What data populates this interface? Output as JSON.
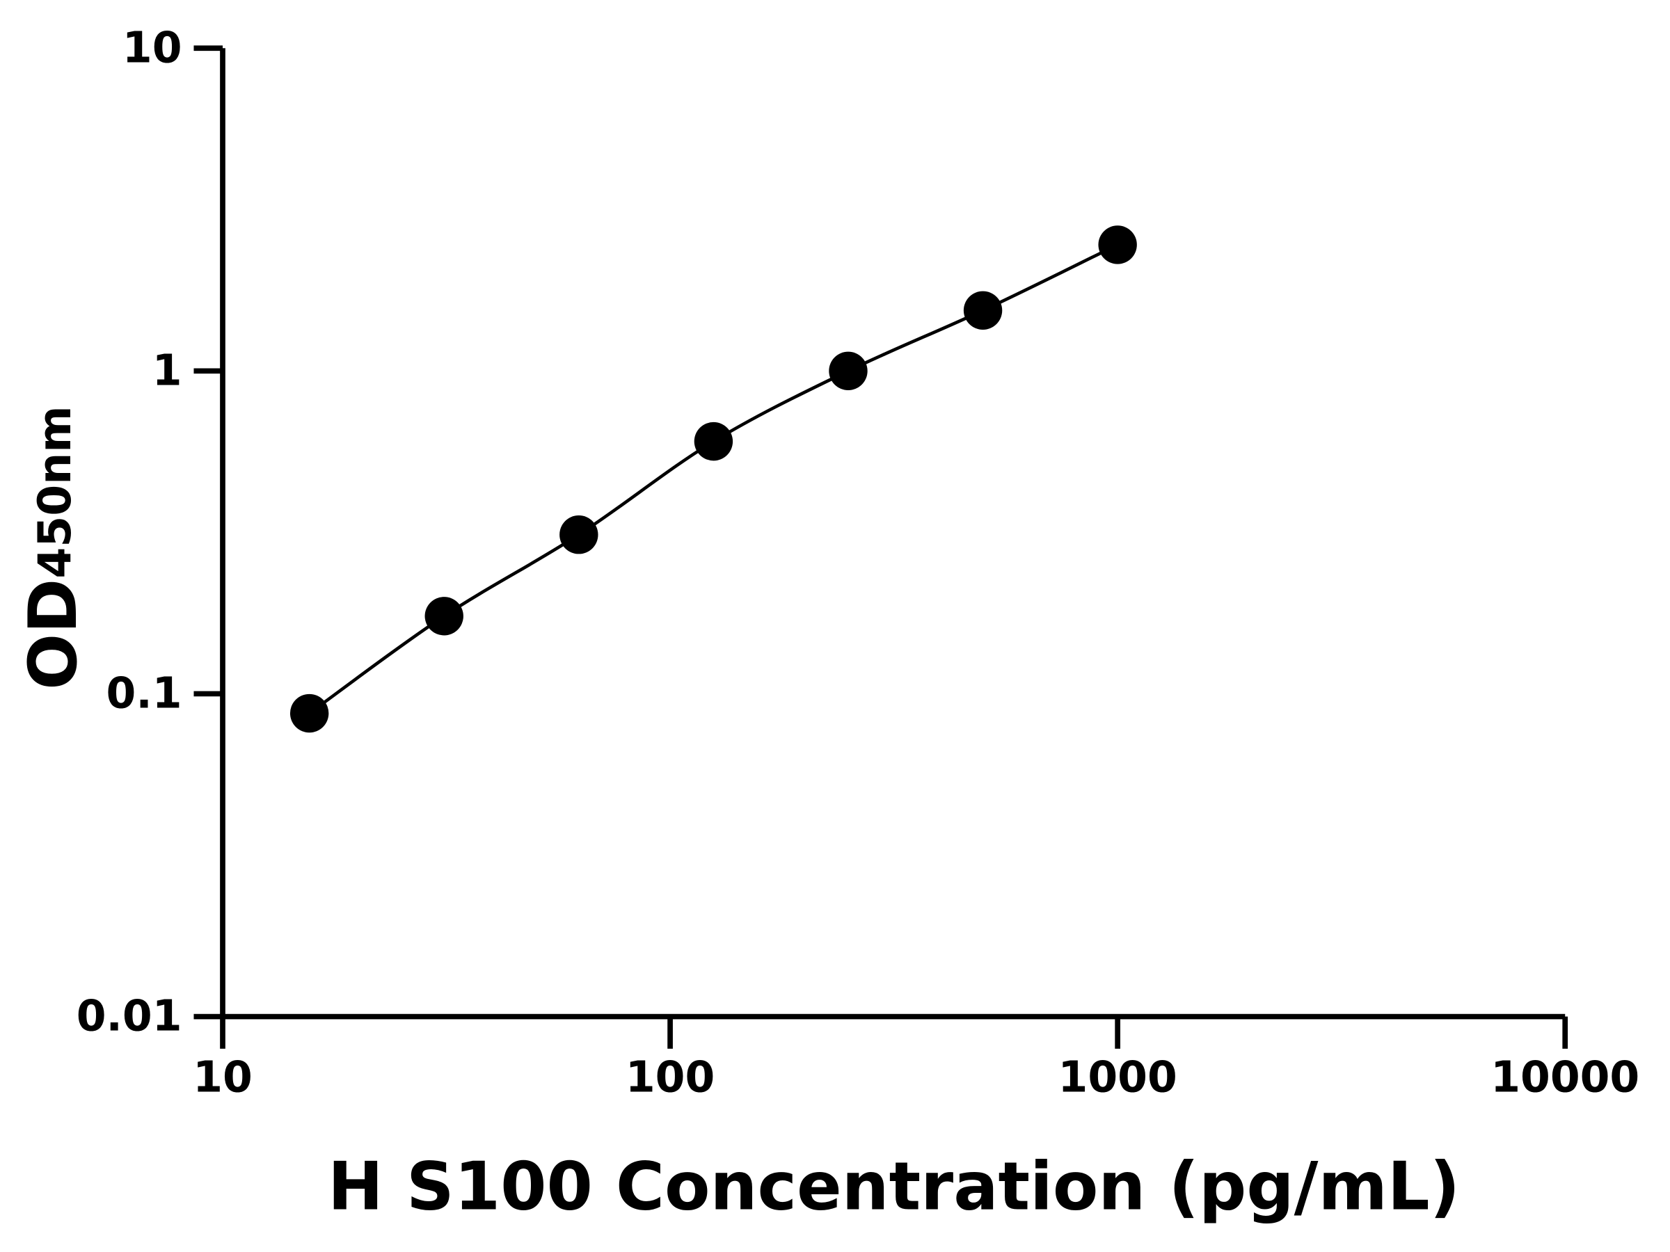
{
  "chart_data": {
    "type": "scatter",
    "x_label": "H S100 Concentration (pg/mL)",
    "y_label": "OD",
    "y_label_sub": "450nm",
    "xscale": "log",
    "yscale": "log",
    "xlim": [
      10,
      10000
    ],
    "ylim": [
      0.01,
      10
    ],
    "xticks": [
      10,
      100,
      1000,
      10000
    ],
    "yticks": [
      0.01,
      0.1,
      1,
      10
    ],
    "fit_line": true,
    "series": [
      {
        "color": "#000000",
        "x": [
          15.625,
          31.25,
          62.5,
          125,
          250,
          500,
          1000
        ],
        "values": [
          0.087,
          0.174,
          0.311,
          0.605,
          1.0,
          1.54,
          2.46
        ]
      }
    ]
  }
}
